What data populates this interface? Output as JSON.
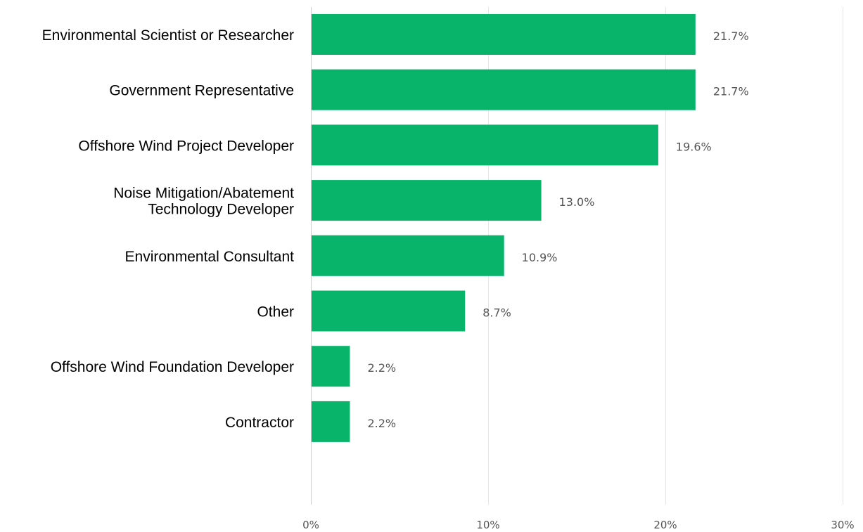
{
  "chart_data": {
    "type": "bar",
    "orientation": "horizontal",
    "categories": [
      [
        "Environmental Scientist or Researcher"
      ],
      [
        "Government Representative"
      ],
      [
        "Offshore Wind Project Developer"
      ],
      [
        "Noise Mitigation/Abatement",
        "Technology Developer"
      ],
      [
        "Environmental Consultant"
      ],
      [
        "Other"
      ],
      [
        "Offshore Wind Foundation Developer"
      ],
      [
        "Contractor"
      ]
    ],
    "values": [
      21.7,
      21.7,
      19.6,
      13.0,
      10.9,
      8.7,
      2.2,
      2.2
    ],
    "value_labels": [
      "21.7%",
      "21.7%",
      "19.6%",
      "13.0%",
      "10.9%",
      "8.7%",
      "2.2%",
      "2.2%"
    ],
    "x_ticks": [
      0,
      10,
      20,
      30
    ],
    "x_tick_labels": [
      "0%",
      "10%",
      "20%",
      "30%"
    ],
    "xlim": [
      0,
      30
    ],
    "xlabel": "",
    "ylabel": "",
    "title": "",
    "bar_color": "#07b46a",
    "grid": true
  }
}
